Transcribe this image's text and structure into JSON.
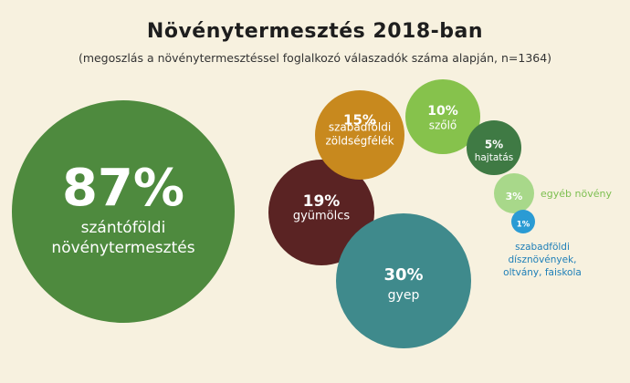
{
  "chart_data": {
    "type": "bubble",
    "title": "Növénytermesztés 2018-ban",
    "subtitle": "(megoszlás a növénytermesztéssel foglalkozó válaszadók száma alapján, n=1364)",
    "unit": "%",
    "items": [
      {
        "value": 87,
        "label": "87%",
        "lines": [
          "szántóföldi",
          "növénytermesztés"
        ],
        "color": "#4e8a3e"
      },
      {
        "value": 19,
        "label": "19%",
        "lines": [
          "gyümölcs"
        ],
        "color": "#5a2323"
      },
      {
        "value": 15,
        "label": "15%",
        "lines": [
          "szabadföldi",
          "zöldségfélék"
        ],
        "color": "#c8891e"
      },
      {
        "value": 30,
        "label": "30%",
        "lines": [
          "gyep"
        ],
        "color": "#3f8a8c"
      },
      {
        "value": 10,
        "label": "10%",
        "lines": [
          "szőlő"
        ],
        "color": "#86c24c"
      },
      {
        "value": 5,
        "label": "5%",
        "lines": [
          "hajtatás"
        ],
        "color": "#3f7a44"
      },
      {
        "value": 3,
        "label": "3%",
        "lines": [
          "egyéb növény"
        ],
        "color": "#a8d88a"
      },
      {
        "value": 1,
        "label": "1%",
        "lines": [
          "szabadföldi",
          "dísznövények,",
          "oltvány, faiskola"
        ],
        "color": "#2a9bd4"
      }
    ]
  }
}
